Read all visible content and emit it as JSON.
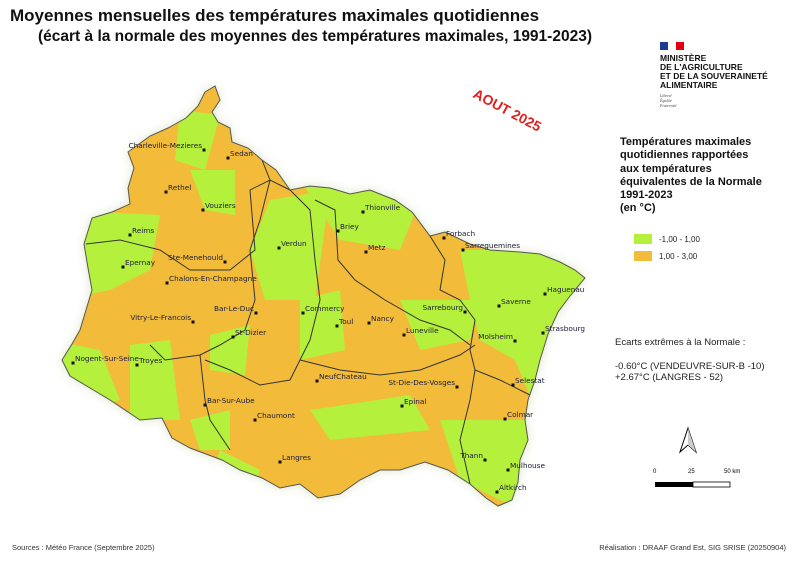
{
  "title": "Moyennes mensuelles des températures maximales quotidiennes",
  "subtitle": "(écart à la normale des moyennes des températures maximales, 1991-2023)",
  "period_label": "AOUT 2025",
  "logo": {
    "ministry": [
      "MINISTÈRE",
      "DE L'AGRICULTURE",
      "ET DE LA SOUVERAINETÉ",
      "ALIMENTAIRE"
    ],
    "motto": [
      "Liberté",
      "Égalité",
      "Fraternité"
    ]
  },
  "legend": {
    "title": "Températures maximales\nquotidiennes rapportées\naux températures\néquivalentes de la Normale\n1991-2023\n(en °C)",
    "items": [
      {
        "label": "-1,00 - 1,00",
        "color": "#b5f03c"
      },
      {
        "label": "1,00 - 3,00",
        "color": "#f2bc3a"
      }
    ]
  },
  "extremes": {
    "heading": "Ecarts extrêmes à la Normale :",
    "min": "-0.60°C (VENDEUVRE-SUR-B -10)",
    "max": "+2.67°C (LANGRES - 52)"
  },
  "scale": {
    "labels": [
      "0",
      "25",
      "50 km"
    ]
  },
  "cities": [
    "Charleville-Mezieres",
    "Sedan",
    "Rethel",
    "Vouziers",
    "Reims",
    "Ste-Menehould",
    "Epernay",
    "Chalons-En-Champagne",
    "Verdun",
    "Bar-Le-Duc",
    "Vitry-Le-Francois",
    "St-Dizier",
    "Nogent-Sur-Seine",
    "Troyes",
    "Bar-Sur-Aube",
    "Chaumont",
    "Langres",
    "Thionville",
    "Briey",
    "Metz",
    "Forbach",
    "Sarreguemines",
    "Haguenau",
    "Saverne",
    "Sarrebourg",
    "Strasbourg",
    "Molsheim",
    "Commercy",
    "Toul",
    "Nancy",
    "Luneville",
    "NeufChateau",
    "St-Die-Des-Vosges",
    "Epinal",
    "Selestat",
    "Colmar",
    "Thann",
    "Mulhouse",
    "Altkirch"
  ],
  "footer": {
    "sources": "Sources : Météo France (Septembre 2025)",
    "credits": "Réalisation : DRAAF Grand Est, SIG SRISE (20250904)"
  }
}
